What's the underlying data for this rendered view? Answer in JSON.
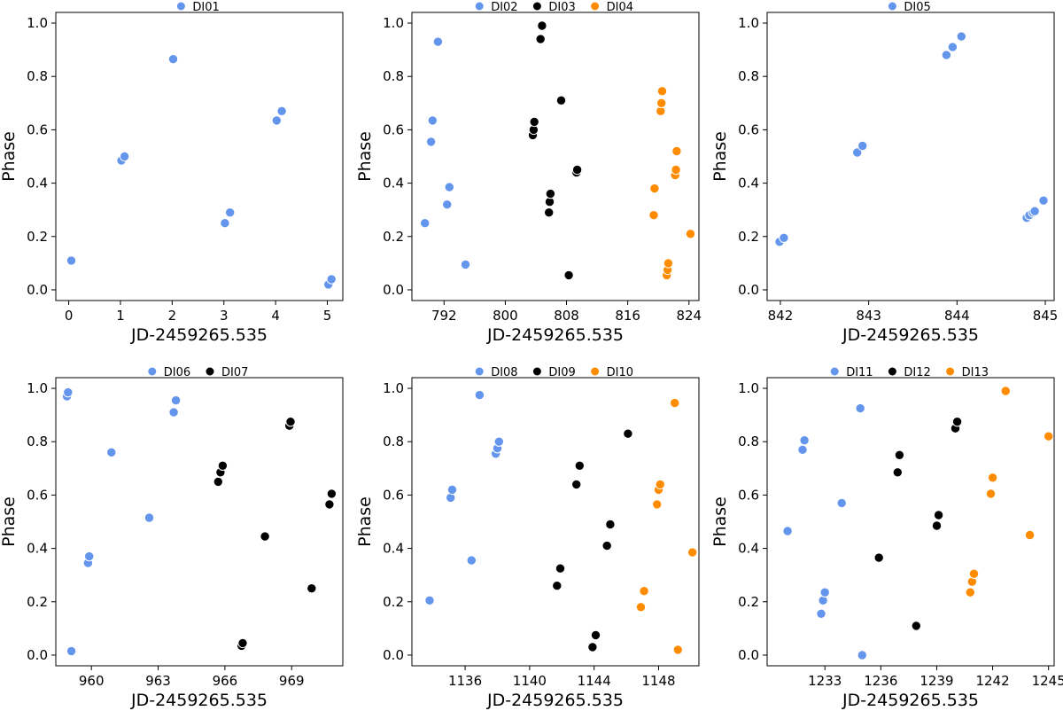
{
  "colors": {
    "DI01": "#6495ed",
    "DI02": "#6495ed",
    "DI03": "#000000",
    "DI04": "#ff8c00",
    "DI05": "#6495ed",
    "DI06": "#6495ed",
    "DI07": "#000000",
    "DI08": "#6495ed",
    "DI09": "#000000",
    "DI10": "#ff8c00",
    "DI11": "#6495ed",
    "DI12": "#000000",
    "DI13": "#ff8c00"
  },
  "chart_data": [
    {
      "type": "scatter",
      "xlabel": "JD-2459265.535",
      "ylabel": "Phase",
      "xlim": [
        -0.25,
        5.3
      ],
      "ylim": [
        -0.04,
        1.04
      ],
      "xticks": [
        0,
        1,
        2,
        3,
        4,
        5
      ],
      "yticks": [
        0.0,
        0.2,
        0.4,
        0.6,
        0.8,
        1.0
      ],
      "series": [
        {
          "name": "DI01",
          "x": [
            0.05,
            1.02,
            1.08,
            2.02,
            3.02,
            3.12,
            4.02,
            4.12,
            5.02,
            5.08
          ],
          "y": [
            0.11,
            0.485,
            0.5,
            0.865,
            0.25,
            0.29,
            0.635,
            0.67,
            0.02,
            0.04
          ]
        }
      ]
    },
    {
      "type": "scatter",
      "xlabel": "JD-2459265.535",
      "ylabel": "Phase",
      "xlim": [
        787.8,
        825.3
      ],
      "ylim": [
        -0.04,
        1.04
      ],
      "xticks": [
        792,
        800,
        808,
        816,
        824
      ],
      "yticks": [
        0.0,
        0.2,
        0.4,
        0.6,
        0.8,
        1.0
      ],
      "series": [
        {
          "name": "DI02",
          "x": [
            789.5,
            790.3,
            790.5,
            791.2,
            792.4,
            792.7,
            794.8
          ],
          "y": [
            0.25,
            0.555,
            0.635,
            0.93,
            0.32,
            0.385,
            0.095
          ]
        },
        {
          "name": "DI03",
          "x": [
            803.6,
            803.7,
            803.8,
            804.6,
            804.8,
            805.7,
            805.8,
            805.9,
            807.3,
            808.3,
            809.3,
            809.4
          ],
          "y": [
            0.58,
            0.6,
            0.63,
            0.94,
            0.99,
            0.29,
            0.33,
            0.36,
            0.71,
            0.055,
            0.44,
            0.45
          ]
        },
        {
          "name": "DI04",
          "x": [
            819.4,
            819.5,
            820.3,
            820.4,
            820.5,
            821.1,
            821.2,
            821.3,
            822.2,
            822.3,
            822.4,
            824.2
          ],
          "y": [
            0.28,
            0.38,
            0.67,
            0.7,
            0.745,
            0.055,
            0.075,
            0.1,
            0.43,
            0.45,
            0.52,
            0.21
          ]
        }
      ]
    },
    {
      "type": "scatter",
      "xlabel": "JD-2459265.535",
      "ylabel": "Phase",
      "xlim": [
        841.85,
        845.1
      ],
      "ylim": [
        -0.04,
        1.04
      ],
      "xticks": [
        842,
        843,
        844,
        845
      ],
      "yticks": [
        0.0,
        0.2,
        0.4,
        0.6,
        0.8,
        1.0
      ],
      "series": [
        {
          "name": "DI05",
          "x": [
            841.99,
            842.04,
            842.87,
            842.93,
            843.88,
            843.95,
            844.05,
            844.79,
            844.82,
            844.86,
            844.88,
            844.98
          ],
          "y": [
            0.18,
            0.195,
            0.515,
            0.54,
            0.88,
            0.91,
            0.95,
            0.27,
            0.28,
            0.29,
            0.295,
            0.335
          ]
        }
      ]
    },
    {
      "type": "scatter",
      "xlabel": "JD-2459265.535",
      "ylabel": "Phase",
      "xlim": [
        958.4,
        971.3
      ],
      "ylim": [
        -0.04,
        1.04
      ],
      "xticks": [
        960,
        963,
        966,
        969
      ],
      "yticks": [
        0.0,
        0.2,
        0.4,
        0.6,
        0.8,
        1.0
      ],
      "series": [
        {
          "name": "DI06",
          "x": [
            958.9,
            958.95,
            959.1,
            959.85,
            959.9,
            960.9,
            962.6,
            963.7,
            963.8
          ],
          "y": [
            0.97,
            0.985,
            0.015,
            0.345,
            0.37,
            0.76,
            0.515,
            0.91,
            0.955
          ]
        },
        {
          "name": "DI07",
          "x": [
            965.7,
            965.8,
            965.9,
            966.75,
            966.8,
            967.8,
            968.9,
            968.95,
            969.9,
            970.7,
            970.8
          ],
          "y": [
            0.65,
            0.685,
            0.71,
            0.035,
            0.045,
            0.445,
            0.86,
            0.875,
            0.25,
            0.565,
            0.605
          ]
        }
      ]
    },
    {
      "type": "scatter",
      "xlabel": "JD-2459265.535",
      "ylabel": "Phase",
      "xlim": [
        1132.7,
        1150.5
      ],
      "ylim": [
        -0.04,
        1.04
      ],
      "xticks": [
        1136,
        1140,
        1144,
        1148
      ],
      "yticks": [
        0.0,
        0.2,
        0.4,
        0.6,
        0.8,
        1.0
      ],
      "series": [
        {
          "name": "DI08",
          "x": [
            1133.8,
            1135.1,
            1135.2,
            1136.4,
            1136.9,
            1137.9,
            1138.0,
            1138.1
          ],
          "y": [
            0.205,
            0.59,
            0.62,
            0.355,
            0.975,
            0.755,
            0.775,
            0.8
          ]
        },
        {
          "name": "DI09",
          "x": [
            1141.7,
            1141.9,
            1142.9,
            1143.1,
            1143.9,
            1144.1,
            1144.8,
            1145.0,
            1146.1
          ],
          "y": [
            0.26,
            0.325,
            0.64,
            0.71,
            0.03,
            0.075,
            0.41,
            0.49,
            0.83
          ]
        },
        {
          "name": "DI10",
          "x": [
            1146.9,
            1147.1,
            1147.9,
            1148.0,
            1148.1,
            1149.0,
            1149.2,
            1150.1
          ],
          "y": [
            0.18,
            0.24,
            0.565,
            0.62,
            0.64,
            0.945,
            0.02,
            0.385
          ]
        }
      ]
    },
    {
      "type": "scatter",
      "xlabel": "JD-2459265.535",
      "ylabel": "Phase",
      "xlim": [
        1229.9,
        1245.3
      ],
      "ylim": [
        -0.04,
        1.04
      ],
      "xticks": [
        1233,
        1236,
        1239,
        1242,
        1245
      ],
      "yticks": [
        0.0,
        0.2,
        0.4,
        0.6,
        0.8,
        1.0
      ],
      "series": [
        {
          "name": "DI11",
          "x": [
            1231.0,
            1231.8,
            1231.9,
            1232.8,
            1232.9,
            1233.0,
            1233.9,
            1234.9,
            1235.0
          ],
          "y": [
            0.465,
            0.77,
            0.805,
            0.155,
            0.205,
            0.235,
            0.57,
            0.925,
            0.0
          ]
        },
        {
          "name": "DI12",
          "x": [
            1235.9,
            1236.9,
            1237.0,
            1237.9,
            1239.0,
            1239.1,
            1240.0,
            1240.1
          ],
          "y": [
            0.365,
            0.685,
            0.75,
            0.11,
            0.485,
            0.525,
            0.85,
            0.875
          ]
        },
        {
          "name": "DI13",
          "x": [
            1240.8,
            1240.9,
            1241.0,
            1241.9,
            1242.0,
            1242.7,
            1244.0,
            1245.0
          ],
          "y": [
            0.235,
            0.275,
            0.305,
            0.605,
            0.665,
            0.99,
            0.45,
            0.82
          ]
        }
      ]
    }
  ]
}
